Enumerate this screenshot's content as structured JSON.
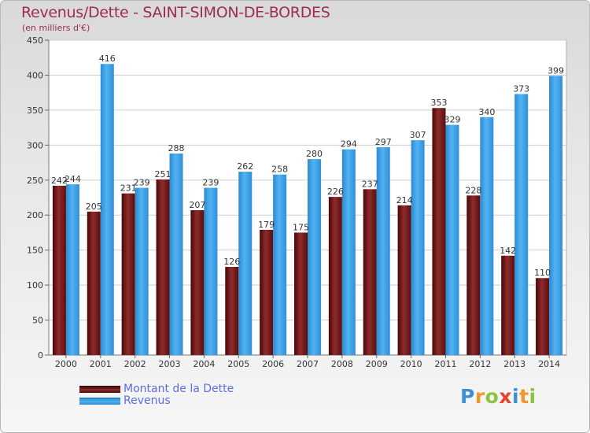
{
  "header": {
    "title": "Revenus/Dette - SAINT-SIMON-DE-BORDES",
    "subtitle": "(en milliers d'€)"
  },
  "legend": {
    "dette": "Montant de la Dette",
    "revenus": "Revenus"
  },
  "logo": {
    "text": "Proxiti",
    "letters": [
      {
        "ch": "P",
        "color": "#3d8fd6"
      },
      {
        "ch": "r",
        "color": "#f0962a"
      },
      {
        "ch": "o",
        "color": "#8bc43f"
      },
      {
        "ch": "x",
        "color": "#e8432f"
      },
      {
        "ch": "i",
        "color": "#3d8fd6"
      },
      {
        "ch": "t",
        "color": "#f0962a"
      },
      {
        "ch": "i",
        "color": "#8bc43f"
      }
    ]
  },
  "colors": {
    "dette": "#7a1a1a",
    "revenus": "#3b9ee2",
    "title": "#9b2d4f",
    "legend_text": "#5c6ee0"
  },
  "chart_data": {
    "type": "bar",
    "title": "Revenus/Dette - SAINT-SIMON-DE-BORDES",
    "subtitle": "(en milliers d'€)",
    "categories": [
      "2000",
      "2001",
      "2002",
      "2003",
      "2004",
      "2005",
      "2006",
      "2007",
      "2008",
      "2009",
      "2010",
      "2011",
      "2012",
      "2013",
      "2014"
    ],
    "series": [
      {
        "name": "Montant de la Dette",
        "values": [
          242,
          205,
          231,
          251,
          207,
          126,
          179,
          175,
          226,
          237,
          214,
          353,
          228,
          142,
          110
        ]
      },
      {
        "name": "Revenus",
        "values": [
          244,
          416,
          239,
          288,
          239,
          262,
          258,
          280,
          294,
          297,
          307,
          329,
          340,
          373,
          399
        ]
      }
    ],
    "yticks": [
      0,
      50,
      100,
      150,
      200,
      250,
      300,
      350,
      400,
      450
    ],
    "ylim": [
      0,
      450
    ],
    "grid": true,
    "legend": "bottom-left"
  }
}
